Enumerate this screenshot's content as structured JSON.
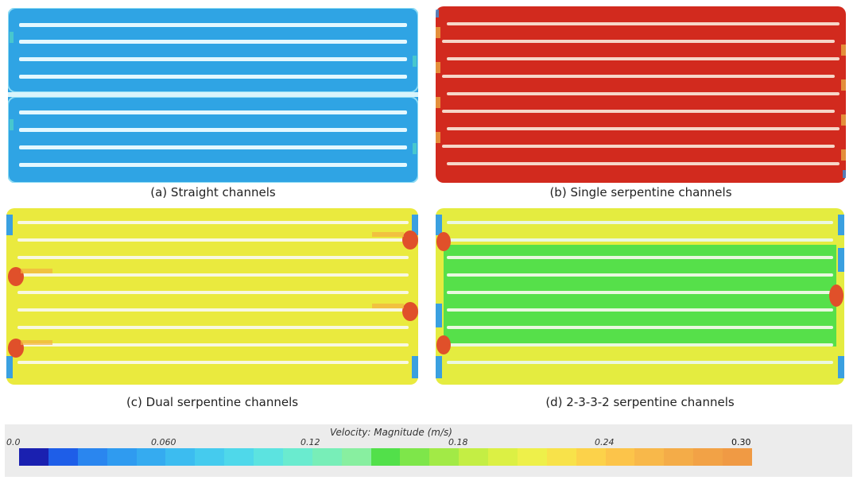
{
  "panels": [
    {
      "caption": "(a) Straight channels"
    },
    {
      "caption": "(b) Single serpentine channels"
    },
    {
      "caption": "(c) Dual serpentine channels"
    },
    {
      "caption": "(d) 2-3-3-2 serpentine channels"
    }
  ],
  "colorbar": {
    "title": "Velocity: Magnitude (m/s)",
    "ticks": [
      "0.0",
      "0.060",
      "0.12",
      "0.18",
      "0.24",
      "0.30"
    ],
    "colors": [
      "#1a20b0",
      "#1e5ee8",
      "#2a86ef",
      "#2f9bf0",
      "#35abf0",
      "#3cbcf0",
      "#45cbee",
      "#4fd8ea",
      "#5ce3e0",
      "#6aebcf",
      "#78eeb8",
      "#88efa0",
      "#52e04a",
      "#7ee64a",
      "#a2ea46",
      "#c4ee44",
      "#dcf044",
      "#eef04a",
      "#f8e24a",
      "#fcd24a",
      "#fcc44a",
      "#f8b84a",
      "#f4ac48",
      "#f2a246",
      "#f09a44"
    ],
    "fields": {
      "a": "#2fa4e4",
      "b": "#d22a1e",
      "c": "#eaea3e",
      "d_green": "#56e04a",
      "d_yellow": "#e4ec40"
    }
  }
}
